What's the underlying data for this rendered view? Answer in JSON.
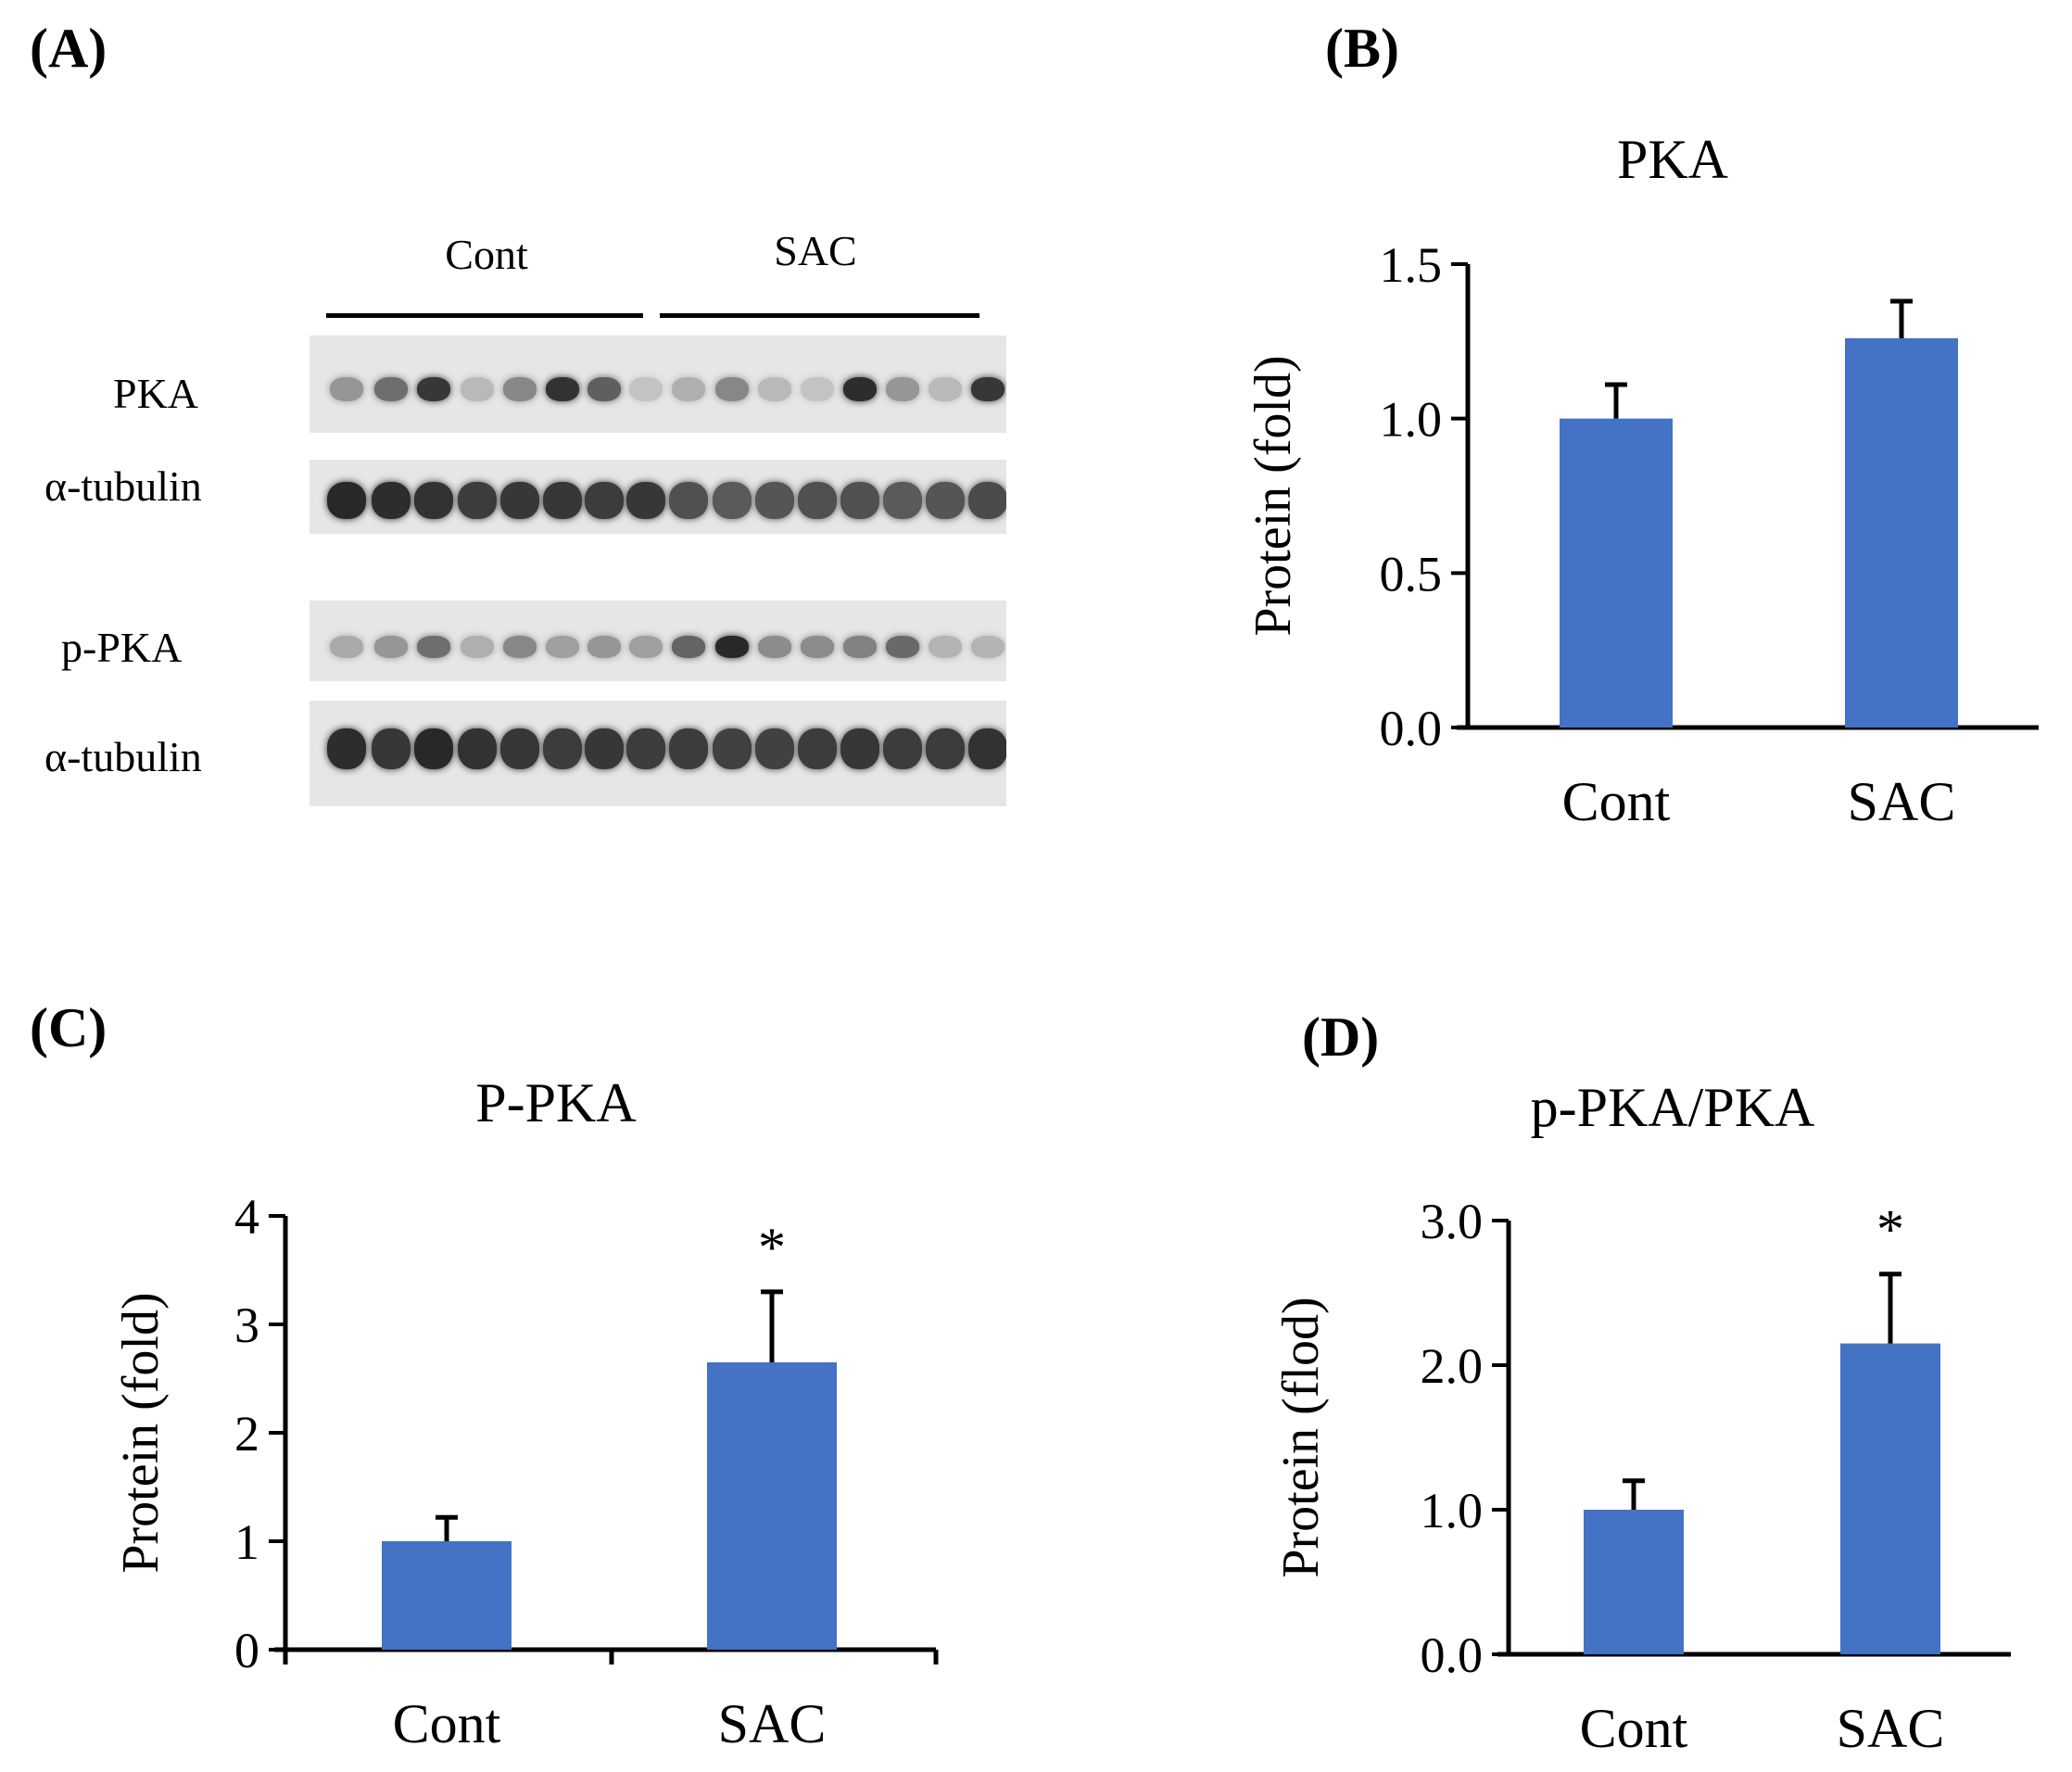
{
  "panel_labels": {
    "a": "(A)",
    "b": "(B)",
    "c": "(C)",
    "d": "(D)"
  },
  "blot": {
    "group_labels": [
      "Cont",
      "SAC"
    ],
    "row_labels": [
      "PKA",
      "α-tubulin",
      "p-PKA",
      "α-tubulin"
    ]
  },
  "chart_data": [
    {
      "type": "bar",
      "title": "PKA",
      "categories": [
        "Cont",
        "SAC"
      ],
      "values": [
        1.0,
        1.26
      ],
      "errors": [
        0.11,
        0.12
      ],
      "significance": [
        "",
        ""
      ],
      "ylabel": "Protein (fold)",
      "xlabel": "",
      "ylim": [
        0,
        1.5
      ],
      "yticks": [
        "0.0",
        "0.5",
        "1.0",
        "1.5"
      ],
      "bar_color": "#4472C4",
      "grid": false
    },
    {
      "type": "bar",
      "title": "P-PKA",
      "categories": [
        "Cont",
        "SAC"
      ],
      "values": [
        1.0,
        2.65
      ],
      "errors": [
        0.22,
        0.65
      ],
      "significance": [
        "",
        "*"
      ],
      "ylabel": "Protein (fold)",
      "xlabel": "",
      "ylim": [
        0,
        4
      ],
      "yticks": [
        "0",
        "1",
        "2",
        "3",
        "4"
      ],
      "bar_color": "#4472C4",
      "grid": false
    },
    {
      "type": "bar",
      "title": "p-PKA/PKA",
      "categories": [
        "Cont",
        "SAC"
      ],
      "values": [
        1.0,
        2.15
      ],
      "errors": [
        0.2,
        0.48
      ],
      "significance": [
        "",
        "*"
      ],
      "ylabel": "Protein (flod)",
      "xlabel": "",
      "ylim": [
        0,
        3.0
      ],
      "yticks": [
        "0.0",
        "1.0",
        "2.0",
        "3.0"
      ],
      "bar_color": "#4472C4",
      "grid": false
    }
  ]
}
